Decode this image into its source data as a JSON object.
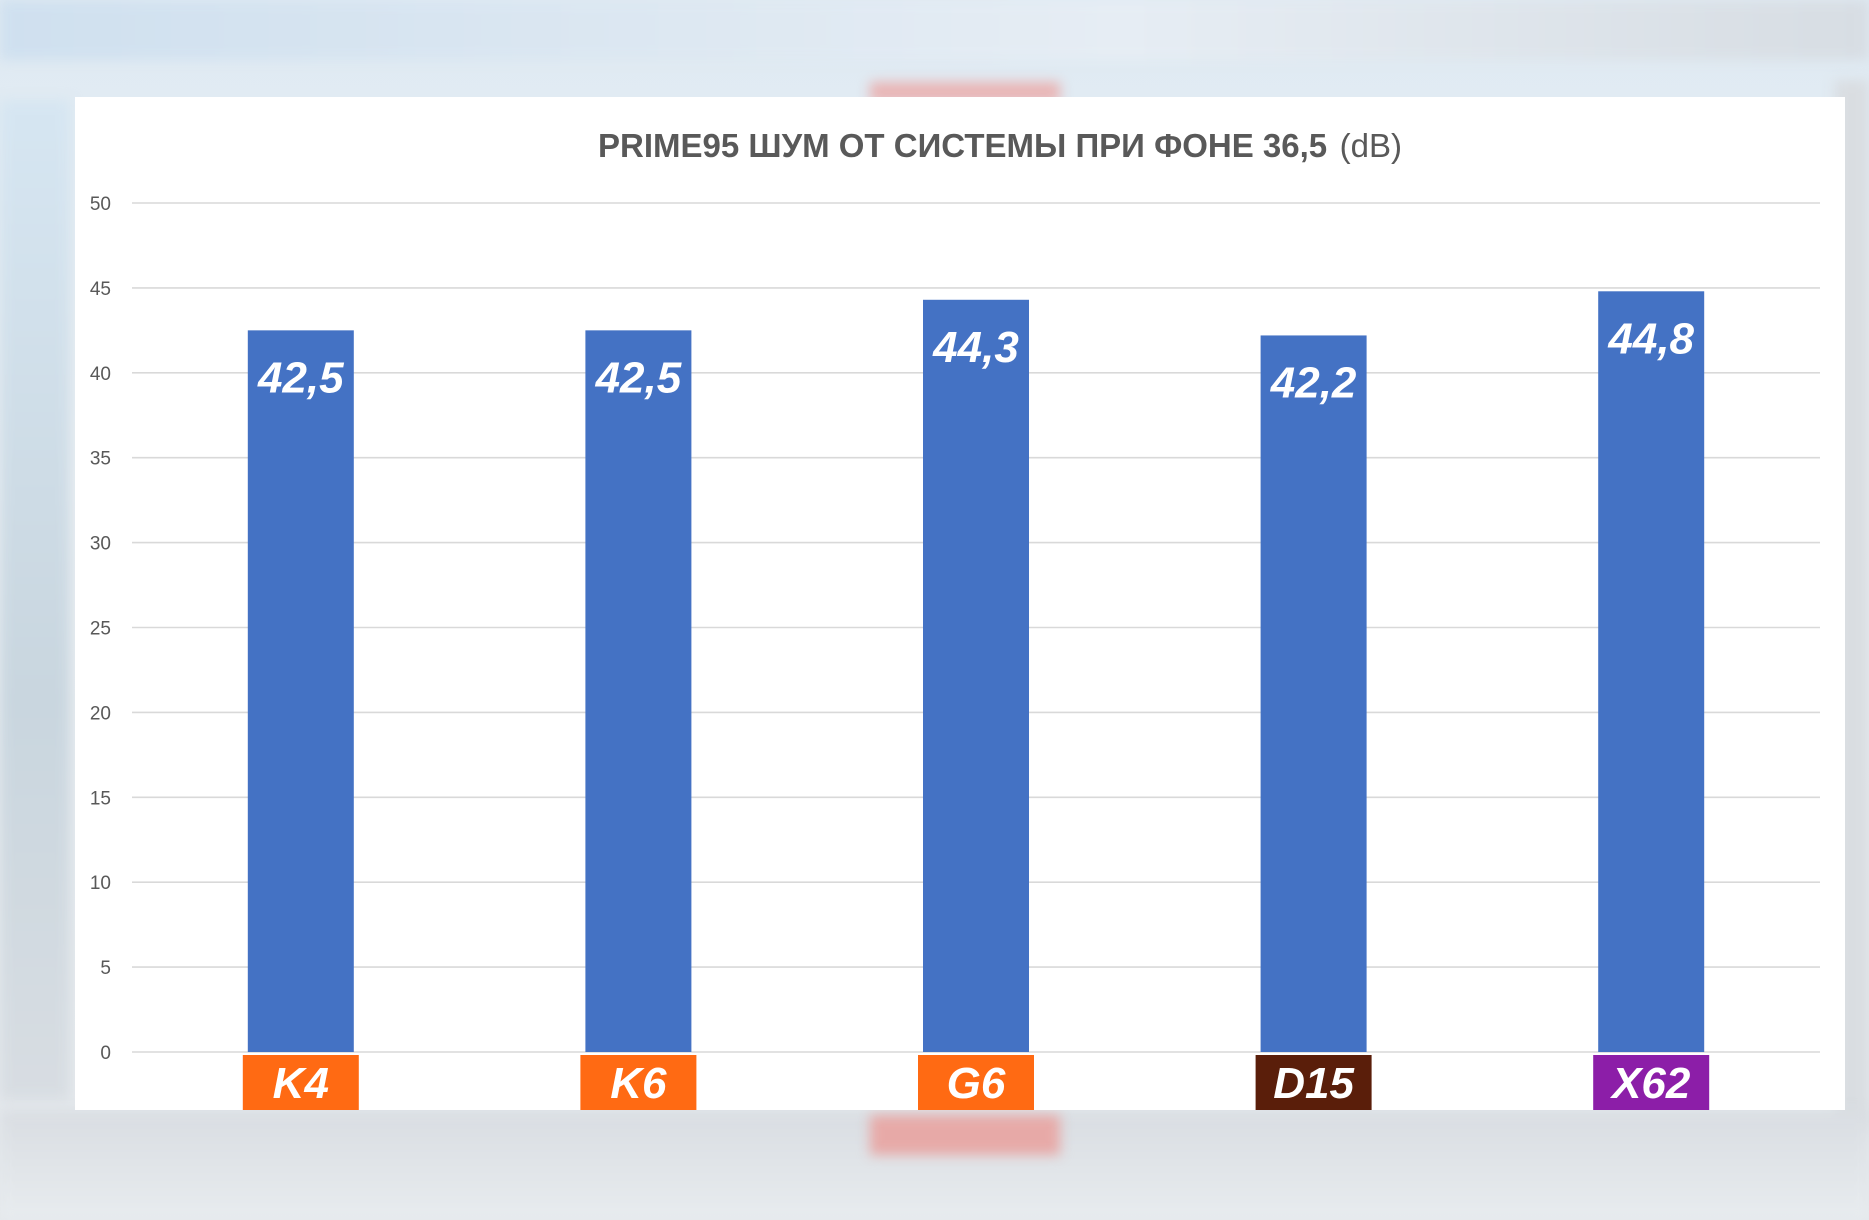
{
  "chart_data": {
    "type": "bar",
    "title": "PRIME95 ШУМ ОТ СИСТЕМЫ ПРИ ФОНЕ 36,5",
    "title_unit": "(dB)",
    "categories": [
      "K4",
      "K6",
      "G6",
      "D15",
      "X62"
    ],
    "values": [
      42.5,
      42.5,
      44.3,
      42.2,
      44.8
    ],
    "value_labels": [
      "42,5",
      "42,5",
      "44,3",
      "42,2",
      "44,8"
    ],
    "category_colors": [
      "#ff6a13",
      "#ff6a13",
      "#ff6a13",
      "#5a1e0a",
      "#8c1ea8"
    ],
    "bar_color": "#4472c4",
    "ylim": [
      0,
      50
    ],
    "yticks": [
      0,
      5,
      10,
      15,
      20,
      25,
      30,
      35,
      40,
      45,
      50
    ],
    "grid": true,
    "legend": "none"
  }
}
